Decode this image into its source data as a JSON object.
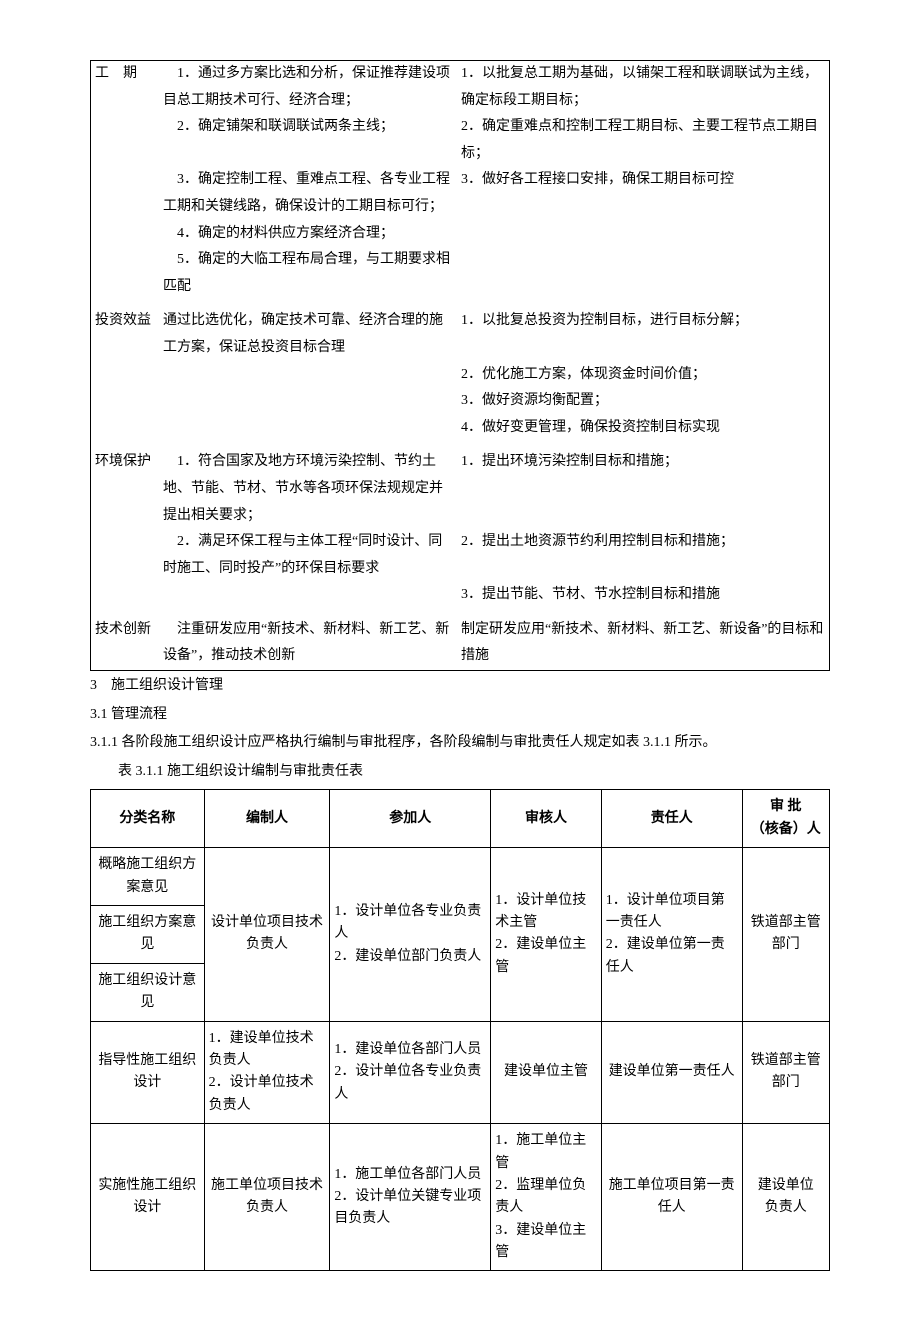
{
  "table1": {
    "rows": [
      {
        "label": "工　期",
        "colA": [
          "　1．通过多方案比选和分析，保证推荐建设项目总工期技术可行、经济合理；",
          "　2．确定铺架和联调联试两条主线；",
          "　3．确定控制工程、重难点工程、各专业工程工期和关键线路，确保设计的工期目标可行；",
          "　4．确定的材料供应方案经济合理；",
          "　5．确定的大临工程布局合理，与工期要求相匹配"
        ],
        "colB": [
          "1．以批复总工期为基础，以铺架工程和联调联试为主线，确定标段工期目标；",
          "2．确定重难点和控制工程工期目标、主要工程节点工期目标；",
          "3．做好各工程接口安排，确保工期目标可控"
        ]
      },
      {
        "label": "投资效益",
        "colA": [
          "通过比选优化，确定技术可靠、经济合理的施工方案，保证总投资目标合理"
        ],
        "colB": [
          "1．以批复总投资为控制目标，进行目标分解；",
          "2．优化施工方案，体现资金时间价值；",
          "3．做好资源均衡配置；",
          "4．做好变更管理，确保投资控制目标实现"
        ]
      },
      {
        "label": "环境保护",
        "colA": [
          "　1．符合国家及地方环境污染控制、节约土地、节能、节材、节水等各项环保法规规定并提出相关要求；",
          "　2．满足环保工程与主体工程“同时设计、同时施工、同时投产”的环保目标要求"
        ],
        "colB": [
          "1．提出环境污染控制目标和措施；",
          "2．提出土地资源节约利用控制目标和措施；",
          "3．提出节能、节材、节水控制目标和措施"
        ]
      },
      {
        "label": "技术创新",
        "colA": [
          "　注重研发应用“新技术、新材料、新工艺、新设备”，推动技术创新"
        ],
        "colB": [
          "制定研发应用“新技术、新材料、新工艺、新设备”的目标和措施"
        ]
      }
    ]
  },
  "section": {
    "h1": "3　施工组织设计管理",
    "h2": "3.1 管理流程",
    "p1": "3.1.1 各阶段施工组织设计应严格执行编制与审批程序，各阶段编制与审批责任人规定如表 3.1.1 所示。",
    "caption": "表 3.1.1 施工组织设计编制与审批责任表"
  },
  "table2": {
    "headers": [
      "分类名称",
      "编制人",
      "参加人",
      "审核人",
      "责任人",
      "审 批\n（核备）人"
    ],
    "group1": {
      "names": [
        "概略施工组织方案意见",
        "施工组织方案意见",
        "施工组织设计意见"
      ],
      "editor": "设计单位项目技术负责人",
      "participant": "1．设计单位各专业负责人\n2．建设单位部门负责人",
      "reviewer": "1．设计单位技术主管\n2．建设单位主管",
      "responsible": "1．设计单位项目第一责任人\n2．建设单位第一责任人",
      "approver": "铁道部主管部门"
    },
    "row2": {
      "name": "指导性施工组织设计",
      "editor": "1．建设单位技术负责人\n2．设计单位技术负责人",
      "participant": "1．建设单位各部门人员\n2．设计单位各专业负责人",
      "reviewer": "建设单位主管",
      "responsible": "建设单位第一责任人",
      "approver": "铁道部主管部门"
    },
    "row3": {
      "name": "实施性施工组织设计",
      "editor": "施工单位项目技术负责人",
      "participant": "1．施工单位各部门人员\n2．设计单位关键专业项目负责人",
      "reviewer": "1．施工单位主管\n2．监理单位负责人\n3．建设单位主管",
      "responsible": "施工单位项目第一责任人",
      "approver": "建设单位\n负责人"
    }
  }
}
